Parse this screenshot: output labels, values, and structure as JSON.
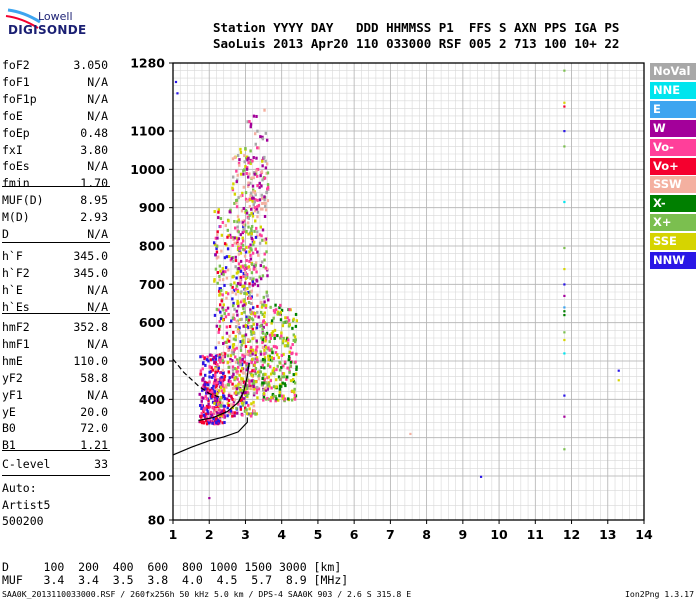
{
  "logo": {
    "top": "Lowell",
    "bottom": "DIGISONDE"
  },
  "header": {
    "line1": "Station YYYY DAY   DDD HHMMSS P1  FFS S AXN PPS IGA PS",
    "line2": "SaoLuis 2013 Apr20 110 033000 RSF 005 2 713 100 10+ 22"
  },
  "params_a": [
    {
      "name": "foF2",
      "value": "3.050"
    },
    {
      "name": "foF1",
      "value": "N/A"
    },
    {
      "name": "foF1p",
      "value": "N/A"
    },
    {
      "name": "foE",
      "value": "N/A"
    },
    {
      "name": "foEp",
      "value": "0.48"
    },
    {
      "name": "fxI",
      "value": "3.80"
    },
    {
      "name": "foEs",
      "value": "N/A"
    },
    {
      "name": "fmin",
      "value": "1.70"
    }
  ],
  "params_b": [
    {
      "name": "MUF(D)",
      "value": "8.95"
    },
    {
      "name": "M(D)",
      "value": "2.93"
    },
    {
      "name": "D",
      "value": "N/A"
    }
  ],
  "params_c": [
    {
      "name": "h`F",
      "value": "345.0"
    },
    {
      "name": "h`F2",
      "value": "345.0"
    },
    {
      "name": "h`E",
      "value": "N/A"
    },
    {
      "name": "h`Es",
      "value": "N/A"
    }
  ],
  "params_d": [
    {
      "name": "hmF2",
      "value": "352.8"
    },
    {
      "name": "hmF1",
      "value": "N/A"
    },
    {
      "name": "hmE",
      "value": "110.0"
    },
    {
      "name": "yF2",
      "value": "58.8"
    },
    {
      "name": "yF1",
      "value": "N/A"
    },
    {
      "name": "yE",
      "value": "20.0"
    },
    {
      "name": "B0",
      "value": "72.0"
    },
    {
      "name": "B1",
      "value": "1.21"
    }
  ],
  "params_e": [
    {
      "name": "C-level",
      "value": "33"
    }
  ],
  "auto": [
    "Auto:",
    "Artist5",
    "500200"
  ],
  "muf_table": {
    "row_d": "D     100  200  400  600  800 1000 1500 3000 [km]",
    "row_muf": "MUF   3.4  3.4  3.5  3.8  4.0  4.5  5.7  8.9 [MHz]"
  },
  "footer": {
    "left": "SAA0K_2013110033000.RSF / 260fx256h 50 kHz 5.0 km / DPS-4 SAA0K 903 / 2.6 S 315.8 E",
    "right": "Ion2Png 1.3.17"
  },
  "legend": [
    {
      "label": "NoVal",
      "color": "#a8a8a8"
    },
    {
      "label": "NNE",
      "color": "#00e5ee"
    },
    {
      "label": "E",
      "color": "#3ea5f0"
    },
    {
      "label": "W",
      "color": "#a3009a"
    },
    {
      "label": "Vo-",
      "color": "#ff3f9a"
    },
    {
      "label": "Vo+",
      "color": "#f5002e"
    },
    {
      "label": "SSW",
      "color": "#f4b0a0"
    },
    {
      "label": "X-",
      "color": "#007f00"
    },
    {
      "label": "X+",
      "color": "#7bbf4f"
    },
    {
      "label": "SSE",
      "color": "#d6d400"
    },
    {
      "label": "NNW",
      "color": "#2a17e6"
    }
  ],
  "chart_data": {
    "type": "scatter",
    "title": "",
    "xlabel": "",
    "ylabel": "",
    "xlim": [
      1,
      14
    ],
    "ylim": [
      80,
      1280
    ],
    "x_ticks": [
      1,
      2,
      3,
      4,
      5,
      6,
      7,
      8,
      9,
      10,
      11,
      12,
      13,
      14
    ],
    "y_ticks": [
      80,
      200,
      300,
      400,
      500,
      600,
      700,
      800,
      900,
      1000,
      1100,
      1280
    ],
    "grid": true,
    "x_minor_step": 0.2,
    "y_minor_step": 20,
    "legend_position": "right",
    "traces": [
      {
        "name": "profile",
        "style": "solid",
        "color": "#000000",
        "points": [
          [
            1.0,
            255
          ],
          [
            1.5,
            275
          ],
          [
            2.0,
            292
          ],
          [
            2.4,
            302
          ],
          [
            2.8,
            315
          ],
          [
            3.05,
            340
          ],
          [
            3.05,
            352.8
          ]
        ]
      },
      {
        "name": "trace-solid",
        "style": "solid",
        "color": "#000000",
        "points": [
          [
            1.7,
            345
          ],
          [
            2.1,
            352
          ],
          [
            2.5,
            368
          ],
          [
            2.8,
            392
          ],
          [
            2.95,
            420
          ],
          [
            3.05,
            460
          ],
          [
            3.1,
            495
          ]
        ]
      },
      {
        "name": "trace-dashed",
        "style": "dashed",
        "color": "#000000",
        "points": [
          [
            1.0,
            505
          ],
          [
            1.3,
            470
          ],
          [
            1.7,
            435
          ],
          [
            2.0,
            415
          ],
          [
            2.3,
            405
          ]
        ]
      }
    ],
    "isolated_points": [
      {
        "x": 1.08,
        "y": 1230,
        "class": "NNW"
      },
      {
        "x": 1.12,
        "y": 1200,
        "class": "NNW"
      },
      {
        "x": 2.0,
        "y": 140,
        "class": "W"
      },
      {
        "x": 7.55,
        "y": 310,
        "class": "SSW"
      },
      {
        "x": 9.5,
        "y": 198,
        "class": "NNW"
      },
      {
        "x": 11.8,
        "y": 1260,
        "class": "X+"
      },
      {
        "x": 11.8,
        "y": 1175,
        "class": "SSE"
      },
      {
        "x": 11.8,
        "y": 1165,
        "class": "Vo+"
      },
      {
        "x": 11.8,
        "y": 1100,
        "class": "NNW"
      },
      {
        "x": 11.8,
        "y": 1060,
        "class": "X+"
      },
      {
        "x": 11.8,
        "y": 915,
        "class": "NNE"
      },
      {
        "x": 11.8,
        "y": 795,
        "class": "X+"
      },
      {
        "x": 11.8,
        "y": 740,
        "class": "SSE"
      },
      {
        "x": 11.8,
        "y": 700,
        "class": "NNW"
      },
      {
        "x": 11.8,
        "y": 670,
        "class": "W"
      },
      {
        "x": 11.8,
        "y": 640,
        "class": "E"
      },
      {
        "x": 11.8,
        "y": 630,
        "class": "X-"
      },
      {
        "x": 11.8,
        "y": 620,
        "class": "X-"
      },
      {
        "x": 11.8,
        "y": 575,
        "class": "X+"
      },
      {
        "x": 11.8,
        "y": 555,
        "class": "SSE"
      },
      {
        "x": 11.8,
        "y": 520,
        "class": "NNE"
      },
      {
        "x": 11.8,
        "y": 410,
        "class": "NNW"
      },
      {
        "x": 11.8,
        "y": 355,
        "class": "W"
      },
      {
        "x": 11.8,
        "y": 270,
        "class": "X+"
      },
      {
        "x": 13.3,
        "y": 475,
        "class": "NNW"
      },
      {
        "x": 13.3,
        "y": 450,
        "class": "SSE"
      }
    ],
    "echo_clusters": [
      {
        "x_range": [
          1.7,
          2.4
        ],
        "y_range": [
          340,
          520
        ],
        "count": 260,
        "mix": [
          "Vo+",
          "Vo-",
          "W",
          "NNW"
        ]
      },
      {
        "x_range": [
          2.1,
          3.3
        ],
        "y_range": [
          360,
          900
        ],
        "count": 520,
        "mix": [
          "Vo-",
          "Vo+",
          "W",
          "SSE",
          "X+",
          "SSW",
          "NNW"
        ]
      },
      {
        "x_range": [
          2.6,
          3.6
        ],
        "y_range": [
          420,
          1060
        ],
        "count": 420,
        "mix": [
          "SSW",
          "SSE",
          "Vo-",
          "W",
          "X+",
          "NoVal"
        ]
      },
      {
        "x_range": [
          3.0,
          3.6
        ],
        "y_range": [
          900,
          1160
        ],
        "count": 70,
        "mix": [
          "W",
          "Vo-",
          "SSW",
          "NoVal"
        ]
      },
      {
        "x_range": [
          3.4,
          4.4
        ],
        "y_range": [
          400,
          650
        ],
        "count": 240,
        "mix": [
          "SSE",
          "X+",
          "X-",
          "Vo-"
        ]
      }
    ]
  }
}
